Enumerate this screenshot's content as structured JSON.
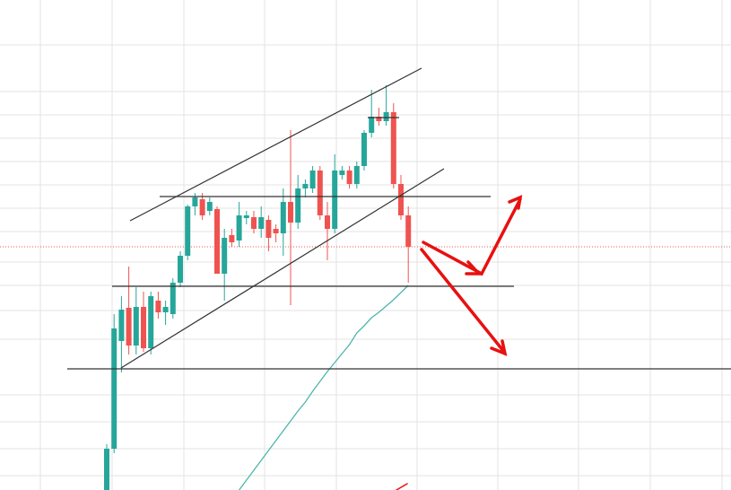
{
  "chart_data": {
    "type": "candlestick",
    "ylim": [
      0,
      546
    ],
    "up_color": "#26a69a",
    "down_color": "#ef5350",
    "open": [
      0,
      46,
      166,
      203,
      161,
      204,
      158,
      211,
      198,
      196,
      231,
      261,
      316,
      324,
      311,
      313,
      241,
      284,
      278,
      303,
      304,
      291,
      301,
      291,
      286,
      321,
      298,
      336,
      336,
      356,
      306,
      291,
      351,
      356,
      341,
      361,
      398,
      416,
      411,
      421,
      341,
      306
    ],
    "high": [
      51,
      196,
      216,
      249,
      226,
      221,
      221,
      221,
      211,
      236,
      266,
      318,
      331,
      331,
      326,
      316,
      291,
      291,
      321,
      311,
      311,
      316,
      306,
      296,
      336,
      401,
      351,
      346,
      361,
      361,
      321,
      374,
      361,
      361,
      366,
      401,
      446,
      426,
      451,
      431,
      351,
      316
    ],
    "low": [
      0,
      41,
      131,
      151,
      151,
      154,
      151,
      191,
      184,
      191,
      226,
      256,
      306,
      301,
      306,
      241,
      211,
      271,
      271,
      296,
      286,
      281,
      266,
      276,
      261,
      206,
      291,
      326,
      331,
      301,
      256,
      286,
      346,
      336,
      336,
      356,
      393,
      406,
      406,
      336,
      301,
      231
    ],
    "close": [
      46,
      180,
      201,
      161,
      204,
      158,
      216,
      198,
      204,
      231,
      261,
      316,
      326,
      306,
      321,
      241,
      281,
      276,
      306,
      306,
      291,
      304,
      281,
      286,
      321,
      298,
      336,
      341,
      356,
      306,
      291,
      356,
      356,
      341,
      361,
      398,
      416,
      411,
      421,
      341,
      306,
      271
    ],
    "overlay": {
      "color": "#4db6ac",
      "values": [
        null,
        null,
        null,
        null,
        null,
        null,
        null,
        null,
        null,
        null,
        null,
        null,
        null,
        null,
        null,
        null,
        null,
        null,
        0,
        11,
        22,
        33,
        44,
        55,
        66,
        77,
        88,
        98,
        110,
        121,
        132,
        142,
        152,
        162,
        175,
        183,
        192,
        198,
        205,
        212,
        220,
        228
      ]
    }
  }
}
